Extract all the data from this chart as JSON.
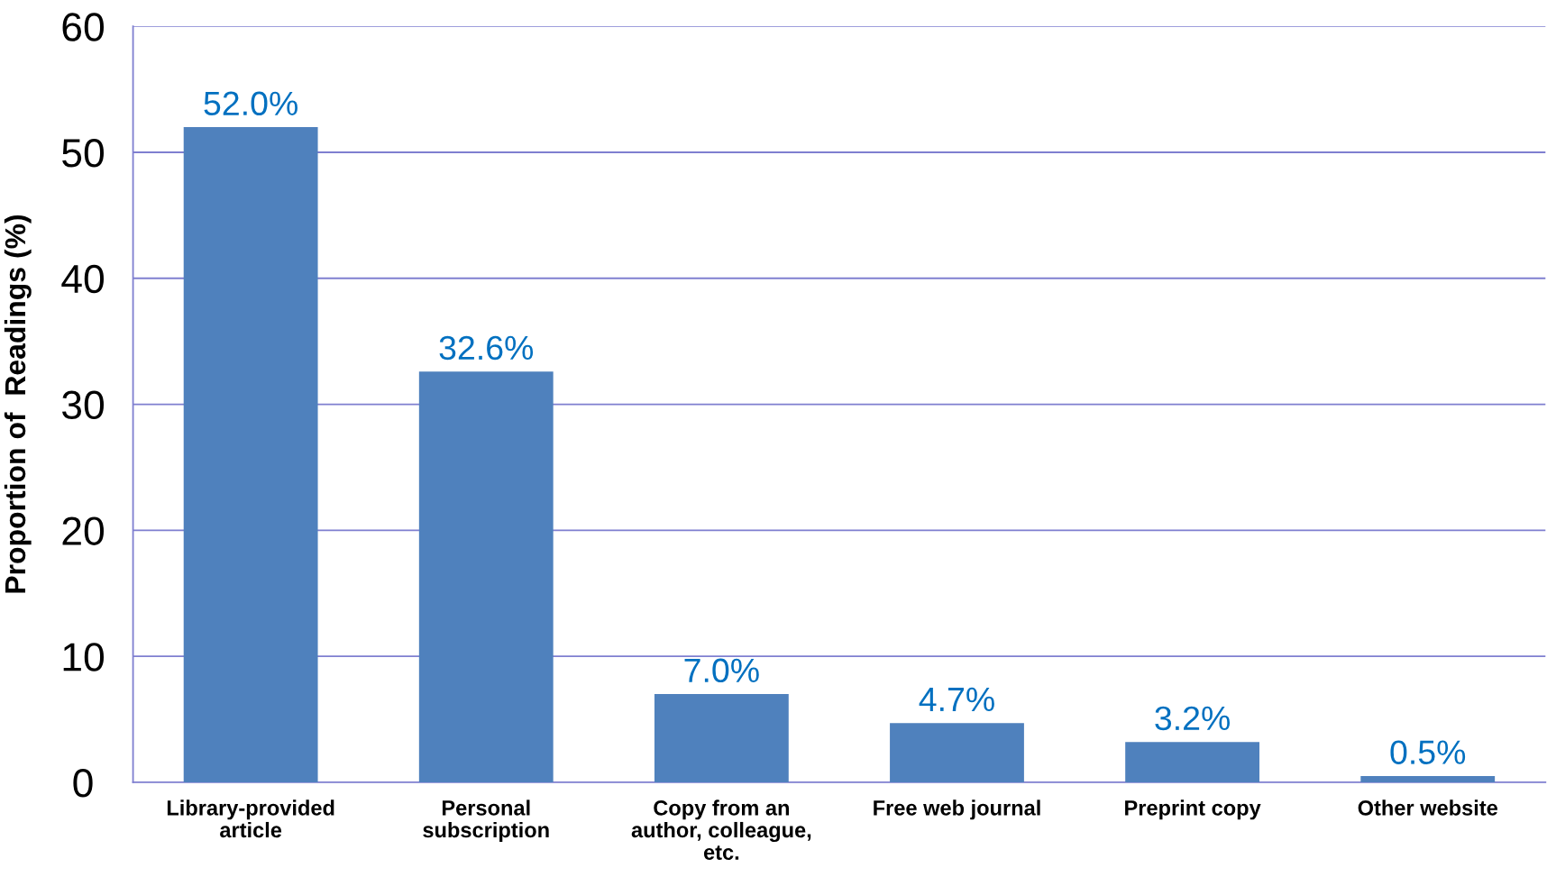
{
  "chart_data": {
    "type": "bar",
    "ylabel": "Proportion of  Readings (%)",
    "categories": [
      "Library-provided\narticle",
      "Personal\nsubscription",
      "Copy from an\nauthor, colleague,\netc.",
      "Free web journal",
      "Preprint copy",
      "Other website"
    ],
    "values": [
      52.0,
      32.6,
      7.0,
      4.7,
      3.2,
      0.5
    ],
    "value_labels": [
      "52.0%",
      "32.6%",
      "7.0%",
      "4.7%",
      "3.2%",
      "0.5%"
    ],
    "color": "#4f81bd",
    "ylim": [
      0,
      60
    ],
    "yticks": [
      0,
      10,
      20,
      30,
      40,
      50,
      60
    ],
    "grid": "y"
  }
}
